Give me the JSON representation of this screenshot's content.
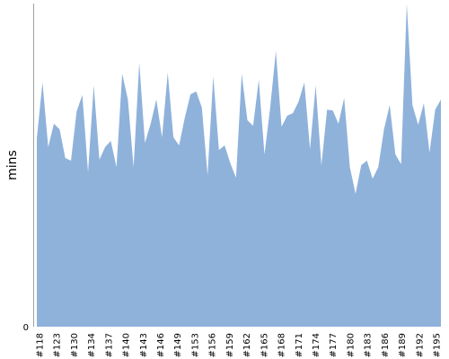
{
  "chart_data": {
    "type": "area",
    "title": "",
    "xlabel": "",
    "ylabel": "mins",
    "ylim": [
      0,
      100
    ],
    "yticks": [
      0
    ],
    "grid": false,
    "legend": "none",
    "color": "#8fb2db",
    "axis_color": "#a0a0a0",
    "x_tick_labels": [
      "#118",
      "#123",
      "#130",
      "#134",
      "#137",
      "#140",
      "#143",
      "#146",
      "#149",
      "#153",
      "#156",
      "#159",
      "#162",
      "#165",
      "#168",
      "#171",
      "#174",
      "#177",
      "#180",
      "#183",
      "#186",
      "#189",
      "#192",
      "#195"
    ],
    "series": [
      {
        "values": [
          58.3,
          75.6,
          55.6,
          62.8,
          61.1,
          52.2,
          51.4,
          66.7,
          71.7,
          47.8,
          74.7,
          51.7,
          55.6,
          57.5,
          49.4,
          78.3,
          70.3,
          49.4,
          81.7,
          56.9,
          62.8,
          70.3,
          58.6,
          78.6,
          58.6,
          56.1,
          64.7,
          71.9,
          72.8,
          67.8,
          46.9,
          77.5,
          54.7,
          56.1,
          50.6,
          46.1,
          78.3,
          63.9,
          62.2,
          76.4,
          53.3,
          67.8,
          85.3,
          61.9,
          65.3,
          66.1,
          69.7,
          75.6,
          55.0,
          74.7,
          50.0,
          67.2,
          66.9,
          62.8,
          70.8,
          49.4,
          41.1,
          50.0,
          51.4,
          45.8,
          49.4,
          61.1,
          68.6,
          53.3,
          50.3,
          100.0,
          68.6,
          62.5,
          69.2,
          53.9,
          67.2,
          70.3
        ]
      }
    ]
  }
}
